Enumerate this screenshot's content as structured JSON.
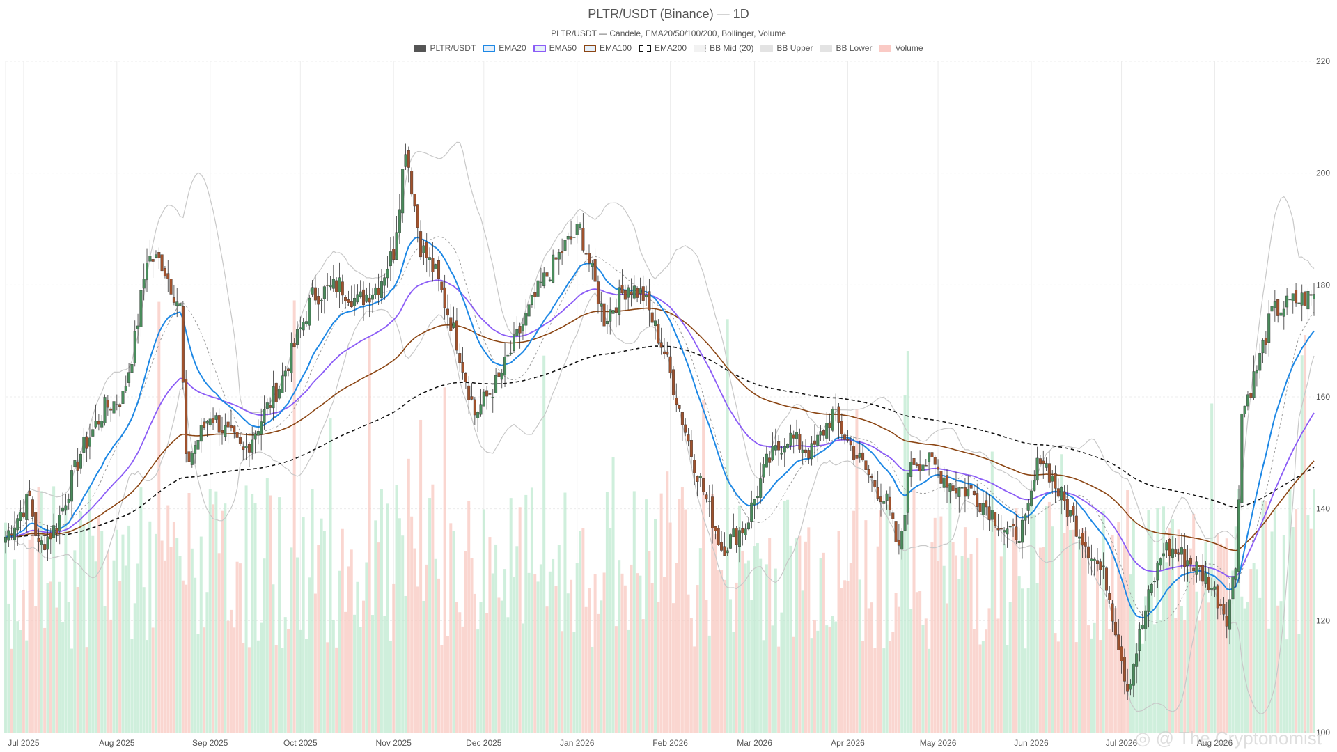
{
  "chart_data": {
    "type": "candlestick",
    "title": "PLTR/USDT (Binance) — 1D",
    "subtitle": "PLTR/USDT — Candele, EMA20/50/100/200, Bollinger, Volume",
    "legend": [
      {
        "label": "PLTR/USDT",
        "color": "#555555",
        "style": "fill"
      },
      {
        "label": "EMA20",
        "color": "#1e88e5",
        "style": "line"
      },
      {
        "label": "EMA50",
        "color": "#8b5cf6",
        "style": "line"
      },
      {
        "label": "EMA100",
        "color": "#8b4513",
        "style": "line"
      },
      {
        "label": "EMA200",
        "color": "#111111",
        "style": "dashed"
      },
      {
        "label": "BB Mid (20)",
        "color": "#aaaaaa",
        "style": "dotted"
      },
      {
        "label": "BB Upper",
        "color": "#c8c8c8",
        "style": "fill"
      },
      {
        "label": "BB Lower",
        "color": "#c8c8c8",
        "style": "fill"
      },
      {
        "label": "Volume",
        "color": "#f8b4ac",
        "style": "fill"
      }
    ],
    "x_ticks": [
      "Jul 2025",
      "Aug 2025",
      "Sep 2025",
      "Oct 2025",
      "Nov 2025",
      "Dec 2025",
      "Jan 2026",
      "Feb 2026",
      "Mar 2026",
      "Apr 2026",
      "May 2026",
      "Jun 2026",
      "Jul 2026",
      "Aug 2026"
    ],
    "y_ticks": [
      120,
      140,
      160,
      180,
      200,
      220
    ],
    "y_min_label": "100",
    "ylim": [
      100,
      220
    ],
    "colors": {
      "up": "#4a8c5c",
      "down": "#a0522d",
      "vol_up": "#bfead0",
      "vol_down": "#f8c8c0",
      "grid": "#ececec"
    },
    "price_anchors": [
      [
        "2025-06-25",
        135
      ],
      [
        "2025-07-03",
        142
      ],
      [
        "2025-07-06",
        133
      ],
      [
        "2025-07-12",
        137
      ],
      [
        "2025-07-20",
        150
      ],
      [
        "2025-07-28",
        158
      ],
      [
        "2025-08-03",
        160
      ],
      [
        "2025-08-07",
        170
      ],
      [
        "2025-08-11",
        185
      ],
      [
        "2025-08-16",
        184
      ],
      [
        "2025-08-22",
        176
      ],
      [
        "2025-08-24",
        148
      ],
      [
        "2025-09-01",
        157
      ],
      [
        "2025-09-12",
        150
      ],
      [
        "2025-09-24",
        162
      ],
      [
        "2025-10-01",
        172
      ],
      [
        "2025-10-05",
        178
      ],
      [
        "2025-10-14",
        180
      ],
      [
        "2025-10-20",
        177
      ],
      [
        "2025-10-27",
        180
      ],
      [
        "2025-11-01",
        186
      ],
      [
        "2025-11-05",
        205
      ],
      [
        "2025-11-10",
        187
      ],
      [
        "2025-11-15",
        182
      ],
      [
        "2025-11-22",
        170
      ],
      [
        "2025-11-28",
        157
      ],
      [
        "2025-12-06",
        163
      ],
      [
        "2025-12-14",
        173
      ],
      [
        "2025-12-20",
        180
      ],
      [
        "2025-12-28",
        187
      ],
      [
        "2026-01-02",
        190
      ],
      [
        "2026-01-06",
        182
      ],
      [
        "2026-01-10",
        174
      ],
      [
        "2026-01-18",
        180
      ],
      [
        "2026-01-23",
        178
      ],
      [
        "2026-01-30",
        168
      ],
      [
        "2026-02-08",
        150
      ],
      [
        "2026-02-18",
        133
      ],
      [
        "2026-02-26",
        137
      ],
      [
        "2026-03-05",
        148
      ],
      [
        "2026-03-12",
        153
      ],
      [
        "2026-03-20",
        150
      ],
      [
        "2026-03-27",
        157
      ],
      [
        "2026-04-01",
        152
      ],
      [
        "2026-04-08",
        146
      ],
      [
        "2026-04-14",
        141
      ],
      [
        "2026-04-18",
        132
      ],
      [
        "2026-04-22",
        149
      ],
      [
        "2026-04-29",
        148
      ],
      [
        "2026-05-06",
        144
      ],
      [
        "2026-05-12",
        143
      ],
      [
        "2026-05-18",
        140
      ],
      [
        "2026-05-25",
        135
      ],
      [
        "2026-05-30",
        137
      ],
      [
        "2026-06-04",
        150
      ],
      [
        "2026-06-10",
        143
      ],
      [
        "2026-06-15",
        138
      ],
      [
        "2026-06-20",
        133
      ],
      [
        "2026-06-26",
        127
      ],
      [
        "2026-07-03",
        108
      ],
      [
        "2026-07-10",
        124
      ],
      [
        "2026-07-15",
        133
      ],
      [
        "2026-07-20",
        132
      ],
      [
        "2026-07-25",
        130
      ],
      [
        "2026-07-30",
        127
      ],
      [
        "2026-08-05",
        121
      ],
      [
        "2026-08-08",
        130
      ],
      [
        "2026-08-10",
        157
      ],
      [
        "2026-08-15",
        165
      ],
      [
        "2026-08-20",
        175
      ],
      [
        "2026-08-27",
        177
      ],
      [
        "2026-09-03",
        178
      ]
    ]
  }
}
